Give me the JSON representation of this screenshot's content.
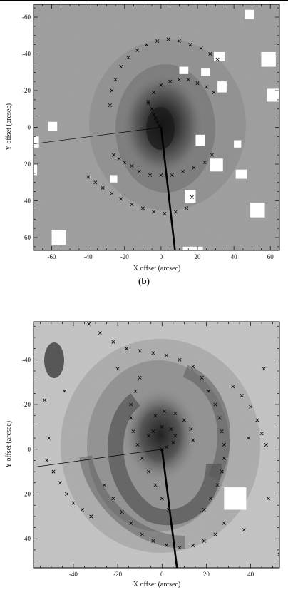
{
  "figure": {
    "rule_top": true,
    "caption_b": "(b)"
  },
  "chart_data": [
    {
      "type": "scatter",
      "xlabel": "X offset (arcsec)",
      "ylabel": "Y offset (arcsec)",
      "xlim": [
        -70,
        65
      ],
      "ylim": [
        -67,
        67
      ],
      "y_inverted": true,
      "xticks": [
        -60,
        -40,
        -20,
        0,
        20,
        40,
        60
      ],
      "yticks": [
        -60,
        -40,
        -20,
        0,
        20,
        40,
        60
      ],
      "background": "grayscale galaxy image",
      "masked_boxes": [
        {
          "x": 46,
          "y": -64,
          "w": 5,
          "h": 5
        },
        {
          "x": 29,
          "y": -41,
          "w": 6,
          "h": 5
        },
        {
          "x": 55,
          "y": -41,
          "w": 8,
          "h": 8
        },
        {
          "x": 10,
          "y": -33,
          "w": 5,
          "h": 4
        },
        {
          "x": 22,
          "y": -32,
          "w": 5,
          "h": 4
        },
        {
          "x": 31,
          "y": -25,
          "w": 5,
          "h": 6
        },
        {
          "x": 58,
          "y": -21,
          "w": 7,
          "h": 7
        },
        {
          "x": -62,
          "y": -3,
          "w": 5,
          "h": 5
        },
        {
          "x": -70,
          "y": 5,
          "w": 3,
          "h": 6
        },
        {
          "x": 19,
          "y": 4,
          "w": 5,
          "h": 6
        },
        {
          "x": 40,
          "y": 7,
          "w": 4,
          "h": 4
        },
        {
          "x": -70,
          "y": 20,
          "w": 2,
          "h": 6
        },
        {
          "x": 27,
          "y": 17,
          "w": 7,
          "h": 7
        },
        {
          "x": 41,
          "y": 23,
          "w": 6,
          "h": 5
        },
        {
          "x": -28,
          "y": 26,
          "w": 4,
          "h": 4
        },
        {
          "x": 13,
          "y": 34,
          "w": 6,
          "h": 7
        },
        {
          "x": 49,
          "y": 41,
          "w": 8,
          "h": 8
        },
        {
          "x": -60,
          "y": 56,
          "w": 8,
          "h": 8
        },
        {
          "x": 12,
          "y": 65,
          "w": 11,
          "h": 3
        }
      ],
      "series": [
        {
          "marker": "x",
          "values": [
            [
              -28,
              -12
            ],
            [
              -27,
              -20
            ],
            [
              -25,
              -26
            ],
            [
              -22,
              -33
            ],
            [
              -18,
              -38
            ],
            [
              -13,
              -42
            ],
            [
              -8,
              -45
            ],
            [
              -2,
              -47
            ],
            [
              4,
              -48
            ],
            [
              10,
              -47
            ],
            [
              16,
              -45
            ],
            [
              22,
              -43
            ],
            [
              27,
              -40
            ],
            [
              31,
              -37
            ]
          ]
        },
        {
          "marker": "x",
          "values": [
            [
              -7,
              -14
            ],
            [
              -4,
              -19
            ],
            [
              0,
              -23
            ],
            [
              5,
              -25
            ],
            [
              10,
              -26
            ],
            [
              15,
              -26
            ],
            [
              20,
              -24
            ],
            [
              25,
              -22
            ],
            [
              29,
              -19
            ]
          ]
        },
        {
          "marker": "x",
          "values": [
            [
              -7,
              -13
            ],
            [
              -5,
              -10
            ],
            [
              -4,
              -7
            ],
            [
              -3,
              -5
            ],
            [
              -2,
              -3
            ],
            [
              -1,
              -1
            ]
          ]
        },
        {
          "marker": "x",
          "values": [
            [
              -26,
              15
            ],
            [
              -23,
              17
            ],
            [
              -20,
              19
            ],
            [
              -16,
              21
            ],
            [
              -12,
              24
            ],
            [
              -6,
              26
            ],
            [
              0,
              26
            ],
            [
              6,
              26
            ],
            [
              12,
              24
            ],
            [
              18,
              22
            ],
            [
              24,
              19
            ],
            [
              28,
              15
            ]
          ]
        },
        {
          "marker": "x",
          "values": [
            [
              -40,
              27
            ],
            [
              -36,
              30
            ],
            [
              -32,
              33
            ],
            [
              -27,
              36
            ],
            [
              -22,
              39
            ],
            [
              -16,
              42
            ],
            [
              -10,
              44
            ],
            [
              -4,
              46
            ],
            [
              2,
              47
            ],
            [
              8,
              46
            ],
            [
              14,
              44
            ]
          ]
        },
        {
          "marker": "x",
          "values": [
            [
              17,
              38
            ]
          ]
        }
      ],
      "lines": [
        {
          "from": [
            -70,
            9
          ],
          "to": [
            0,
            0
          ],
          "width": "thin"
        },
        {
          "from": [
            0,
            0
          ],
          "to": [
            8,
            70
          ],
          "width": "thick"
        }
      ]
    },
    {
      "type": "scatter",
      "xlabel": "X offset (arcsec)",
      "ylabel": "Y offset (arcsec)",
      "xlim": [
        -58,
        53
      ],
      "ylim": [
        -57,
        53
      ],
      "y_inverted": true,
      "xticks": [
        -40,
        -20,
        0,
        20,
        40
      ],
      "yticks": [
        -40,
        -20,
        0,
        20,
        40
      ],
      "background": "grayscale galaxy image",
      "masked_boxes": [
        {
          "x": 28,
          "y": 17,
          "w": 10,
          "h": 10
        }
      ],
      "series": [
        {
          "marker": "x",
          "values": [
            [
              -33,
              -56
            ],
            [
              -28,
              -52
            ],
            [
              -22,
              -48
            ],
            [
              -16,
              -45
            ],
            [
              -10,
              -44
            ],
            [
              -4,
              -43
            ],
            [
              2,
              -42
            ],
            [
              8,
              -40
            ],
            [
              14,
              -37
            ],
            [
              18,
              -32
            ],
            [
              21,
              -26
            ],
            [
              24,
              -20
            ],
            [
              26,
              -14
            ],
            [
              27,
              -8
            ],
            [
              28,
              -2
            ],
            [
              28,
              4
            ],
            [
              27,
              10
            ],
            [
              25,
              16
            ],
            [
              22,
              22
            ],
            [
              19,
              27
            ]
          ]
        },
        {
          "marker": "x",
          "values": [
            [
              -10,
              -32
            ],
            [
              -12,
              -26
            ],
            [
              -14,
              -20
            ],
            [
              -14,
              -14
            ],
            [
              -13,
              -8
            ],
            [
              -11,
              -2
            ],
            [
              -9,
              4
            ],
            [
              -6,
              10
            ],
            [
              -3,
              16
            ],
            [
              0,
              22
            ],
            [
              3,
              27
            ]
          ]
        },
        {
          "marker": "x",
          "values": [
            [
              -6,
              -6
            ],
            [
              -4,
              -8
            ],
            [
              0,
              -10
            ],
            [
              4,
              -9
            ],
            [
              6,
              -6
            ],
            [
              5,
              -3
            ],
            [
              2,
              -1
            ],
            [
              0,
              0
            ]
          ]
        },
        {
          "marker": "x",
          "values": [
            [
              -3,
              -15
            ],
            [
              1,
              -17
            ],
            [
              6,
              -16
            ],
            [
              10,
              -13
            ],
            [
              13,
              -9
            ],
            [
              14,
              -4
            ]
          ]
        },
        {
          "marker": "x",
          "values": [
            [
              32,
              -28
            ],
            [
              36,
              -24
            ],
            [
              40,
              -19
            ],
            [
              43,
              -13
            ],
            [
              45,
              -7
            ],
            [
              47,
              -2
            ]
          ]
        },
        {
          "marker": "x",
          "values": [
            [
              -52,
              5
            ],
            [
              -49,
              10
            ],
            [
              -46,
              15
            ],
            [
              -43,
              20
            ],
            [
              -40,
              24
            ],
            [
              -36,
              27
            ],
            [
              -32,
              30
            ]
          ]
        },
        {
          "marker": "x",
          "values": [
            [
              -26,
              16
            ],
            [
              -22,
              22
            ],
            [
              -18,
              28
            ],
            [
              -14,
              33
            ],
            [
              -9,
              38
            ],
            [
              -4,
              41
            ],
            [
              2,
              43
            ],
            [
              8,
              44
            ],
            [
              14,
              43
            ],
            [
              19,
              41
            ],
            [
              24,
              38
            ],
            [
              28,
              33
            ]
          ]
        },
        {
          "marker": "x",
          "values": [
            [
              -44,
              -26
            ],
            [
              -53,
              -22
            ],
            [
              -51,
              -5
            ],
            [
              48,
              22
            ],
            [
              39,
              -5
            ],
            [
              46,
              -36
            ],
            [
              37,
              36
            ],
            [
              53,
              47
            ],
            [
              -20,
              -36
            ]
          ]
        }
      ],
      "lines": [
        {
          "from": [
            -58,
            8
          ],
          "to": [
            0,
            0
          ],
          "width": "thin"
        },
        {
          "from": [
            0,
            0
          ],
          "to": [
            7,
            55
          ],
          "width": "thick"
        }
      ]
    }
  ]
}
